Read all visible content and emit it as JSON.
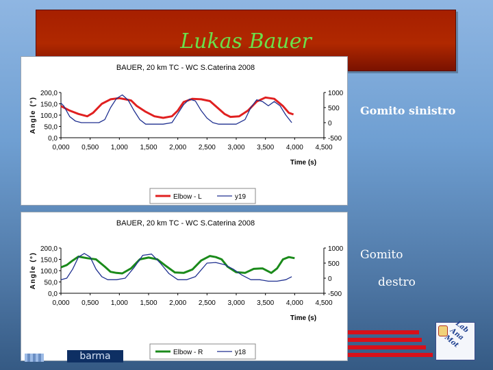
{
  "slide": {
    "title": "Lukas Bauer"
  },
  "labels": {
    "left_elbow": "Gomito sinistro",
    "right_elbow_line1": "Gomito",
    "right_elbow_line2": "destro"
  },
  "footer": {
    "logo_word": "barma"
  },
  "chart_data": [
    {
      "type": "line",
      "title": "BAUER, 20 km TC - WC S.Caterina 2008",
      "xlabel": "Time (s)",
      "ylabel": "Angle (°)",
      "xlim": [
        0,
        4.5
      ],
      "ylim_left": [
        0,
        200
      ],
      "ylim_right": [
        -500,
        1000
      ],
      "xticks": [
        "0,000",
        "0,500",
        "1,000",
        "1,500",
        "2,000",
        "2,500",
        "3,000",
        "3,500",
        "4,000",
        "4,500"
      ],
      "yticks_left": [
        "200,0",
        "150,0",
        "100,0",
        "50,0",
        "0,0"
      ],
      "yticks_right": [
        "1000",
        "500",
        "0",
        "-500"
      ],
      "series": [
        {
          "name": "Elbow - L",
          "axis": "left",
          "color": "#e02020",
          "x": [
            0.0,
            0.15,
            0.3,
            0.45,
            0.55,
            0.7,
            0.85,
            1.0,
            1.1,
            1.2,
            1.3,
            1.45,
            1.6,
            1.75,
            1.9,
            2.0,
            2.1,
            2.25,
            2.4,
            2.55,
            2.7,
            2.8,
            2.9,
            3.05,
            3.2,
            3.35,
            3.5,
            3.65,
            3.8,
            3.9,
            3.98
          ],
          "y": [
            140,
            120,
            105,
            95,
            110,
            150,
            170,
            175,
            170,
            165,
            140,
            115,
            95,
            88,
            95,
            120,
            158,
            172,
            170,
            162,
            128,
            105,
            92,
            95,
            120,
            160,
            178,
            172,
            140,
            110,
            103
          ]
        },
        {
          "name": "y19",
          "axis": "right",
          "color": "#1e2f8f",
          "x": [
            0.0,
            0.05,
            0.15,
            0.25,
            0.35,
            0.5,
            0.65,
            0.75,
            0.85,
            0.95,
            1.05,
            1.15,
            1.25,
            1.35,
            1.45,
            1.6,
            1.75,
            1.9,
            2.0,
            2.1,
            2.2,
            2.3,
            2.4,
            2.5,
            2.6,
            2.7,
            2.85,
            3.0,
            3.15,
            3.25,
            3.35,
            3.45,
            3.55,
            3.65,
            3.75,
            3.85,
            3.95
          ],
          "y": [
            650,
            550,
            200,
            50,
            0,
            0,
            0,
            100,
            500,
            800,
            920,
            750,
            400,
            100,
            -50,
            -50,
            -50,
            0,
            300,
            600,
            780,
            720,
            400,
            150,
            0,
            -50,
            -50,
            -50,
            100,
            500,
            760,
            700,
            560,
            700,
            560,
            250,
            0
          ]
        }
      ]
    },
    {
      "type": "line",
      "title": "BAUER, 20 km TC - WC S.Caterina 2008",
      "xlabel": "Time (s)",
      "ylabel": "Angle (°)",
      "xlim": [
        0,
        4.5
      ],
      "ylim_left": [
        0,
        200
      ],
      "ylim_right": [
        -500,
        1000
      ],
      "xticks": [
        "0,000",
        "0,500",
        "1,000",
        "1,500",
        "2,000",
        "2,500",
        "3,000",
        "3,500",
        "4,000",
        "4,500"
      ],
      "yticks_left": [
        "200,0",
        "150,0",
        "100,0",
        "50,0",
        "0,0"
      ],
      "yticks_right": [
        "1000",
        "500",
        "0",
        "-500"
      ],
      "series": [
        {
          "name": "Elbow - R",
          "axis": "left",
          "color": "#1a8a1a",
          "x": [
            0.0,
            0.1,
            0.2,
            0.3,
            0.45,
            0.6,
            0.75,
            0.85,
            0.95,
            1.05,
            1.2,
            1.35,
            1.5,
            1.65,
            1.8,
            1.95,
            2.1,
            2.25,
            2.4,
            2.55,
            2.65,
            2.75,
            2.85,
            3.0,
            3.15,
            3.3,
            3.45,
            3.6,
            3.7,
            3.8,
            3.9,
            4.0
          ],
          "y": [
            115,
            125,
            145,
            162,
            155,
            150,
            118,
            95,
            90,
            88,
            110,
            150,
            158,
            150,
            120,
            92,
            90,
            105,
            145,
            165,
            160,
            150,
            118,
            93,
            90,
            108,
            110,
            90,
            110,
            150,
            160,
            155
          ]
        },
        {
          "name": "y18",
          "axis": "right",
          "color": "#1e2f8f",
          "x": [
            0.0,
            0.1,
            0.2,
            0.3,
            0.4,
            0.5,
            0.6,
            0.7,
            0.8,
            0.95,
            1.1,
            1.25,
            1.4,
            1.55,
            1.7,
            1.85,
            2.0,
            2.15,
            2.3,
            2.5,
            2.65,
            2.8,
            2.95,
            3.1,
            3.25,
            3.4,
            3.55,
            3.7,
            3.85,
            3.95
          ],
          "y": [
            -50,
            0,
            300,
            700,
            820,
            700,
            300,
            50,
            -50,
            -50,
            0,
            350,
            760,
            800,
            500,
            150,
            -50,
            -50,
            50,
            500,
            520,
            450,
            300,
            100,
            -50,
            -50,
            -100,
            -100,
            -50,
            50
          ]
        }
      ]
    }
  ]
}
